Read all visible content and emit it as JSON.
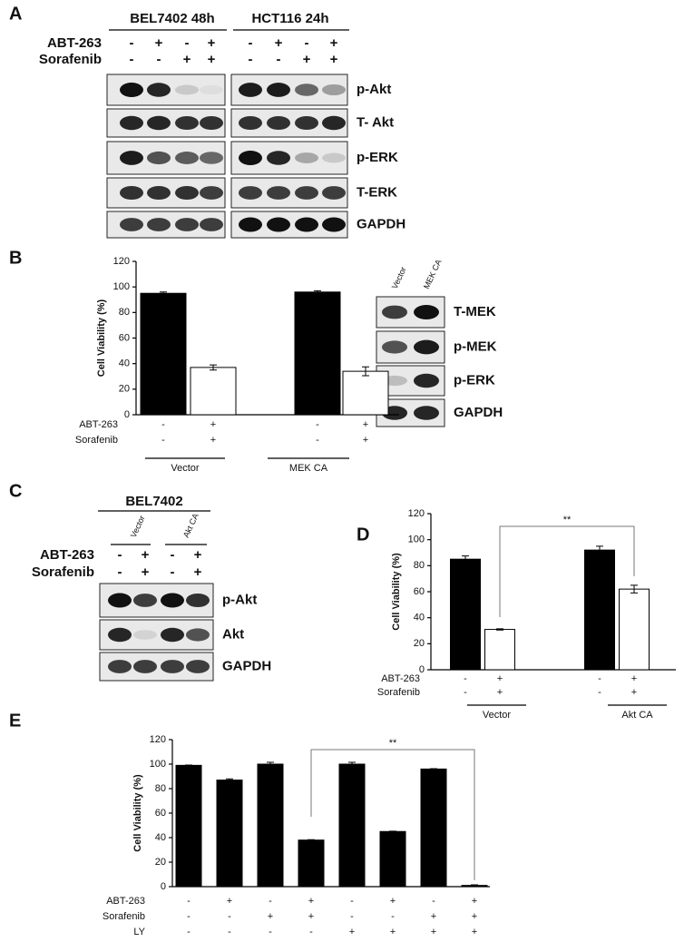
{
  "panel_labels": [
    "A",
    "B",
    "C",
    "D",
    "E"
  ],
  "blot_a": {
    "groups": [
      "BEL7402 48h",
      "HCT116 24h"
    ],
    "treatments": [
      {
        "name": "ABT-263",
        "signs": [
          "-",
          "+",
          "-",
          "+",
          "-",
          "+",
          "-",
          "+"
        ]
      },
      {
        "name": "Sorafenib",
        "signs": [
          "-",
          "-",
          "+",
          "+",
          "-",
          "-",
          "+",
          "+"
        ]
      }
    ],
    "bands": [
      "p-Akt",
      "T- Akt",
      "p-ERK",
      "T-ERK",
      "GAPDH"
    ]
  },
  "blot_b": {
    "lanes": [
      "Vector",
      "MEK CA"
    ],
    "bands": [
      "T-MEK",
      "p-MEK",
      "p-ERK",
      "GAPDH"
    ]
  },
  "blot_c": {
    "title": "BEL7402",
    "lanes": [
      "Vector",
      "Akt CA"
    ],
    "treatments": [
      {
        "name": "ABT-263",
        "signs": [
          "-",
          "+",
          "-",
          "+"
        ]
      },
      {
        "name": "Sorafenib",
        "signs": [
          "-",
          "+",
          "-",
          "+"
        ]
      }
    ],
    "bands": [
      "p-Akt",
      "Akt",
      "GAPDH"
    ]
  },
  "chart_data": [
    {
      "type": "bar",
      "y_label": "Cell Viability (%)",
      "categories": [
        null,
        null,
        null,
        null
      ],
      "values": [
        95,
        37,
        96,
        34
      ],
      "errors": [
        1,
        2,
        1,
        3.5
      ],
      "colors": [
        "#000000",
        "#ffffff",
        "#000000",
        "#ffffff"
      ],
      "ylim": [
        0,
        120
      ],
      "yticks": [
        0,
        20,
        40,
        60,
        80,
        100,
        120
      ],
      "treatments": [
        {
          "name": "ABT-263",
          "signs": [
            "-",
            "+",
            "-",
            "+"
          ]
        },
        {
          "name": "Sorafenib",
          "signs": [
            "-",
            "+",
            "-",
            "+"
          ]
        }
      ],
      "groups": [
        "Vector",
        "MEK CA"
      ]
    },
    {
      "type": "bar",
      "y_label": "Cell Viability (%)",
      "categories": [
        null,
        null,
        null,
        null
      ],
      "values": [
        85,
        31,
        92,
        62
      ],
      "errors": [
        2.5,
        0.5,
        3,
        3
      ],
      "colors": [
        "#000000",
        "#ffffff",
        "#000000",
        "#ffffff"
      ],
      "ylim": [
        0,
        120
      ],
      "yticks": [
        0,
        20,
        40,
        60,
        80,
        100,
        120
      ],
      "treatments": [
        {
          "name": "ABT-263",
          "signs": [
            "-",
            "+",
            "-",
            "+"
          ]
        },
        {
          "name": "Sorafenib",
          "signs": [
            "-",
            "+",
            "-",
            "+"
          ]
        }
      ],
      "groups": [
        "Vector",
        "Akt CA"
      ],
      "annotation": "**"
    },
    {
      "type": "bar",
      "y_label": "Cell Viability (%)",
      "categories": [
        null,
        null,
        null,
        null,
        null,
        null,
        null,
        null
      ],
      "values": [
        99,
        87,
        100,
        38,
        100,
        45,
        96,
        1
      ],
      "errors": [
        0.3,
        1,
        1.5,
        0.3,
        1.5,
        0.3,
        0.3,
        0.5
      ],
      "colors": [
        "#000000",
        "#000000",
        "#000000",
        "#000000",
        "#000000",
        "#000000",
        "#000000",
        "#000000"
      ],
      "ylim": [
        0,
        120
      ],
      "yticks": [
        0,
        20,
        40,
        60,
        80,
        100,
        120
      ],
      "treatments": [
        {
          "name": "ABT-263",
          "signs": [
            "-",
            "+",
            "-",
            "+",
            "-",
            "+",
            "-",
            "+"
          ]
        },
        {
          "name": "Sorafenib",
          "signs": [
            "-",
            "-",
            "+",
            "+",
            "-",
            "-",
            "+",
            "+"
          ]
        },
        {
          "name": "LY",
          "signs": [
            "-",
            "-",
            "-",
            "-",
            "+",
            "+",
            "+",
            "+"
          ]
        }
      ],
      "annotation": "**"
    }
  ]
}
